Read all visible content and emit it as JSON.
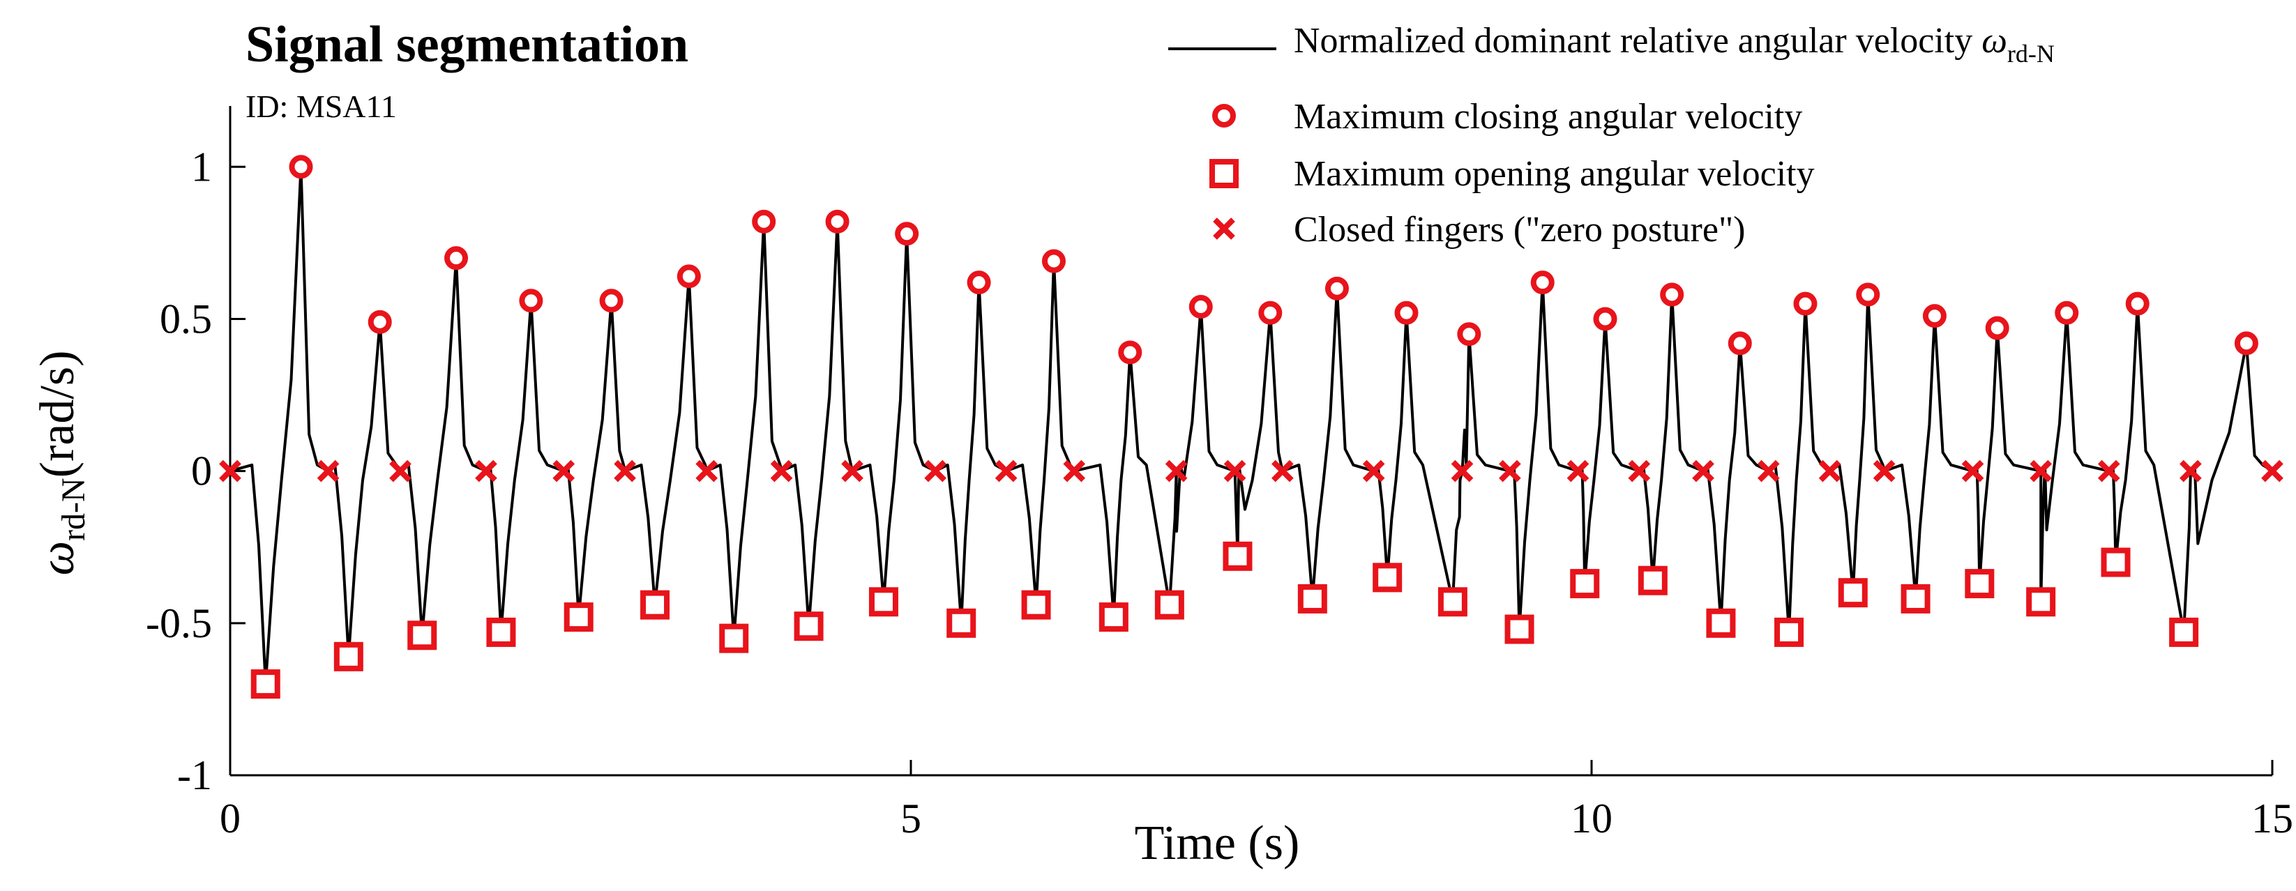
{
  "chart_data": {
    "type": "line",
    "title": "Signal segmentation",
    "subtitle": "ID: MSA11",
    "xlabel": "Time (s)",
    "ylabel_symbol": "ω",
    "ylabel_sub": "rd-N",
    "ylabel_unit": "(rad/s)",
    "xlim": [
      0,
      15
    ],
    "ylim": [
      -1,
      1.2
    ],
    "xticks": [
      {
        "value": 0,
        "label": "0"
      },
      {
        "value": 5,
        "label": "5"
      },
      {
        "value": 10,
        "label": "10"
      },
      {
        "value": 15,
        "label": "15"
      }
    ],
    "yticks": [
      {
        "value": 1,
        "label": "1"
      },
      {
        "value": 0.5,
        "label": "0.5"
      },
      {
        "value": 0,
        "label": "0"
      },
      {
        "value": -0.5,
        "label": "-0.5"
      },
      {
        "value": -1,
        "label": "-1"
      }
    ],
    "legend": {
      "line": {
        "label": "Normalized dominant relative angular velocity ",
        "symbol": "ω",
        "sub": "rd-N"
      },
      "max_closing": "Maximum closing angular velocity",
      "max_opening": "Maximum opening angular velocity",
      "closed": "Closed fingers (\"zero posture\")"
    },
    "colors": {
      "signal": "#000000",
      "marker": "#e8141b"
    },
    "zeros": [
      0.0,
      0.72,
      1.25,
      1.88,
      2.45,
      2.9,
      3.5,
      4.05,
      4.57,
      5.18,
      5.7,
      6.2,
      6.95,
      7.38,
      7.73,
      8.4,
      9.05,
      9.4,
      9.9,
      10.35,
      10.82,
      11.3,
      11.75,
      12.15,
      12.8,
      13.3,
      13.8,
      14.4,
      15.0
    ],
    "max_opening": [
      {
        "t": 0.26,
        "v": -0.7
      },
      {
        "t": 0.87,
        "v": -0.61
      },
      {
        "t": 1.41,
        "v": -0.54
      },
      {
        "t": 1.99,
        "v": -0.53
      },
      {
        "t": 2.56,
        "v": -0.48
      },
      {
        "t": 3.12,
        "v": -0.44
      },
      {
        "t": 3.7,
        "v": -0.55
      },
      {
        "t": 4.25,
        "v": -0.51
      },
      {
        "t": 4.8,
        "v": -0.43
      },
      {
        "t": 5.37,
        "v": -0.5
      },
      {
        "t": 5.92,
        "v": -0.44
      },
      {
        "t": 6.49,
        "v": -0.48
      },
      {
        "t": 6.9,
        "v": -0.44
      },
      {
        "t": 7.4,
        "v": -0.28
      },
      {
        "t": 7.95,
        "v": -0.42
      },
      {
        "t": 8.5,
        "v": -0.35
      },
      {
        "t": 8.98,
        "v": -0.43
      },
      {
        "t": 9.47,
        "v": -0.52
      },
      {
        "t": 9.95,
        "v": -0.37
      },
      {
        "t": 10.45,
        "v": -0.36
      },
      {
        "t": 10.95,
        "v": -0.5
      },
      {
        "t": 11.45,
        "v": -0.53
      },
      {
        "t": 11.92,
        "v": -0.4
      },
      {
        "t": 12.38,
        "v": -0.42
      },
      {
        "t": 12.85,
        "v": -0.37
      },
      {
        "t": 13.3,
        "v": -0.43
      },
      {
        "t": 13.85,
        "v": -0.3
      },
      {
        "t": 14.35,
        "v": -0.53
      }
    ],
    "max_closing": [
      {
        "t": 0.52,
        "v": 1.0
      },
      {
        "t": 1.1,
        "v": 0.49
      },
      {
        "t": 1.66,
        "v": 0.7
      },
      {
        "t": 2.21,
        "v": 0.56
      },
      {
        "t": 2.8,
        "v": 0.56
      },
      {
        "t": 3.37,
        "v": 0.64
      },
      {
        "t": 3.92,
        "v": 0.82
      },
      {
        "t": 4.46,
        "v": 0.82
      },
      {
        "t": 4.97,
        "v": 0.78
      },
      {
        "t": 5.5,
        "v": 0.62
      },
      {
        "t": 6.05,
        "v": 0.69
      },
      {
        "t": 6.61,
        "v": 0.39
      },
      {
        "t": 7.13,
        "v": 0.54
      },
      {
        "t": 7.64,
        "v": 0.52
      },
      {
        "t": 8.13,
        "v": 0.6
      },
      {
        "t": 8.64,
        "v": 0.52
      },
      {
        "t": 9.1,
        "v": 0.45
      },
      {
        "t": 9.64,
        "v": 0.62
      },
      {
        "t": 10.1,
        "v": 0.5
      },
      {
        "t": 10.59,
        "v": 0.58
      },
      {
        "t": 11.09,
        "v": 0.42
      },
      {
        "t": 11.57,
        "v": 0.55
      },
      {
        "t": 12.03,
        "v": 0.58
      },
      {
        "t": 12.52,
        "v": 0.51
      },
      {
        "t": 12.98,
        "v": 0.47
      },
      {
        "t": 13.49,
        "v": 0.52
      },
      {
        "t": 14.01,
        "v": 0.55
      },
      {
        "t": 14.81,
        "v": 0.42
      }
    ]
  }
}
